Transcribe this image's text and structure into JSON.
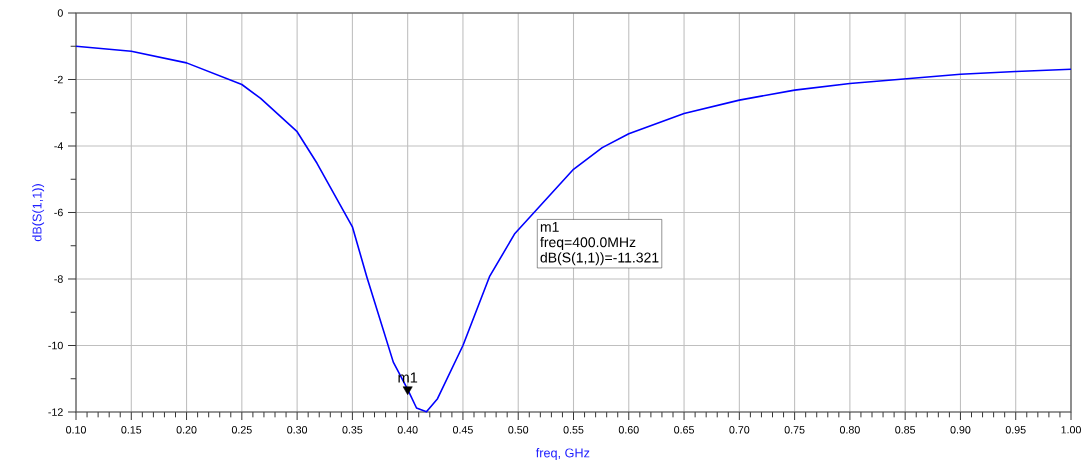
{
  "chart_data": {
    "type": "line",
    "xlabel": "freq, GHz",
    "ylabel": "dB(S(1,1))",
    "x": [
      0.1,
      0.15,
      0.2,
      0.25,
      0.267,
      0.3,
      0.318,
      0.35,
      0.363,
      0.387,
      0.4,
      0.408,
      0.417,
      0.427,
      0.45,
      0.474,
      0.497,
      0.55,
      0.576,
      0.6,
      0.65,
      0.7,
      0.75,
      0.8,
      0.85,
      0.9,
      0.95,
      1.0
    ],
    "series": [
      {
        "color": "#0000ff",
        "values": [
          -1.0,
          -1.15,
          -1.5,
          -2.15,
          -2.57,
          -3.57,
          -4.52,
          -6.43,
          -7.93,
          -10.5,
          -11.321,
          -11.88,
          -11.99,
          -11.6,
          -10.0,
          -7.93,
          -6.63,
          -4.7,
          -4.05,
          -3.63,
          -3.02,
          -2.62,
          -2.32,
          -2.12,
          -1.98,
          -1.84,
          -1.76,
          -1.69
        ]
      }
    ],
    "xlim": [
      0.1,
      1.0
    ],
    "xticks": [
      "0.10",
      0.15,
      "0.20",
      0.25,
      "0.30",
      0.35,
      "0.40",
      0.45,
      "0.50",
      0.55,
      "0.60",
      0.65,
      "0.70",
      0.75,
      "0.80",
      0.85,
      "0.90",
      0.95,
      "1.00"
    ],
    "ylim": [
      -12,
      0
    ],
    "yticks": [
      -12,
      -10,
      -8,
      -6,
      -4,
      -2,
      0
    ],
    "grid": true,
    "marker": "none",
    "line_style": "solid",
    "annotations": [
      {
        "text": "m1",
        "x": 0.4,
        "y": -11.321
      },
      "m1",
      "freq=400.0MHz",
      "dB(S(1,1))=-11.321"
    ]
  }
}
